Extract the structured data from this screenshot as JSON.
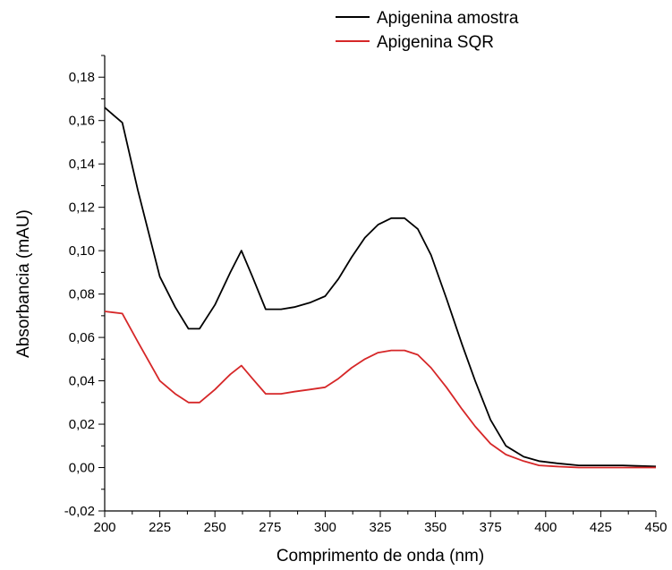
{
  "chart_data": {
    "type": "line",
    "xlabel": "Comprimento de onda (nm)",
    "ylabel": "Absorbancia (mAU)",
    "xlim": [
      200,
      450
    ],
    "ylim": [
      -0.02,
      0.19
    ],
    "xticks": [
      200,
      225,
      250,
      275,
      300,
      325,
      350,
      375,
      400,
      425,
      450
    ],
    "xtick_labels": [
      "200",
      "225",
      "250",
      "275",
      "300",
      "325",
      "350",
      "375",
      "400",
      "425",
      "450"
    ],
    "yticks": [
      -0.02,
      0.0,
      0.02,
      0.04,
      0.06,
      0.08,
      0.1,
      0.12,
      0.14,
      0.16,
      0.18
    ],
    "ytick_labels": [
      "-0,02",
      "0,00",
      "0,02",
      "0,04",
      "0,06",
      "0,08",
      "0,10",
      "0,12",
      "0,14",
      "0,16",
      "0,18"
    ],
    "grid": false,
    "legend_position": "top-center",
    "series": [
      {
        "name": "Apigenina amostra",
        "color": "#000000",
        "x": [
          200,
          208,
          215,
          225,
          232,
          238,
          243,
          250,
          257,
          262,
          267,
          273,
          280,
          286,
          293,
          300,
          306,
          312,
          318,
          324,
          330,
          336,
          342,
          348,
          355,
          362,
          368,
          375,
          382,
          390,
          397,
          405,
          415,
          425,
          435,
          450
        ],
        "y": [
          0.166,
          0.159,
          0.128,
          0.088,
          0.074,
          0.064,
          0.064,
          0.075,
          0.09,
          0.1,
          0.088,
          0.073,
          0.073,
          0.074,
          0.076,
          0.079,
          0.087,
          0.097,
          0.106,
          0.112,
          0.115,
          0.115,
          0.11,
          0.098,
          0.078,
          0.057,
          0.04,
          0.022,
          0.01,
          0.005,
          0.003,
          0.002,
          0.001,
          0.001,
          0.001,
          0.0005
        ]
      },
      {
        "name": "Apigenina SQR",
        "color": "#d62728",
        "x": [
          200,
          208,
          215,
          225,
          232,
          238,
          243,
          250,
          257,
          262,
          267,
          273,
          280,
          286,
          293,
          300,
          306,
          312,
          318,
          324,
          330,
          336,
          342,
          348,
          355,
          362,
          368,
          375,
          382,
          390,
          397,
          405,
          415,
          425,
          435,
          450
        ],
        "y": [
          0.072,
          0.071,
          0.058,
          0.04,
          0.034,
          0.03,
          0.03,
          0.036,
          0.043,
          0.047,
          0.041,
          0.034,
          0.034,
          0.035,
          0.036,
          0.037,
          0.041,
          0.046,
          0.05,
          0.053,
          0.054,
          0.054,
          0.052,
          0.046,
          0.037,
          0.027,
          0.019,
          0.011,
          0.006,
          0.003,
          0.001,
          0.0005,
          0.0,
          0.0,
          0.0,
          0.0
        ]
      }
    ]
  }
}
